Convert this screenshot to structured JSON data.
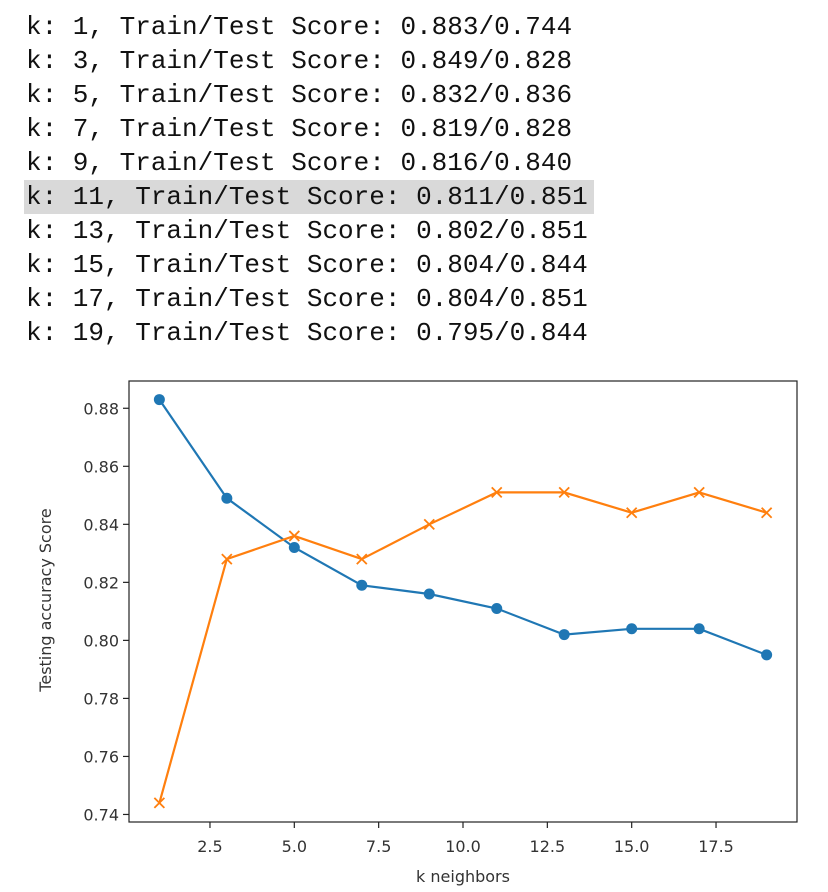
{
  "console": {
    "lines": [
      {
        "text": "k: 1, Train/Test Score: 0.883/0.744",
        "highlighted": false
      },
      {
        "text": "k: 3, Train/Test Score: 0.849/0.828",
        "highlighted": false
      },
      {
        "text": "k: 5, Train/Test Score: 0.832/0.836",
        "highlighted": false
      },
      {
        "text": "k: 7, Train/Test Score: 0.819/0.828",
        "highlighted": false
      },
      {
        "text": "k: 9, Train/Test Score: 0.816/0.840",
        "highlighted": false
      },
      {
        "text": "k: 11, Train/Test Score: 0.811/0.851",
        "highlighted": true
      },
      {
        "text": "k: 13, Train/Test Score: 0.802/0.851",
        "highlighted": false
      },
      {
        "text": "k: 15, Train/Test Score: 0.804/0.844",
        "highlighted": false
      },
      {
        "text": "k: 17, Train/Test Score: 0.804/0.851",
        "highlighted": false
      },
      {
        "text": "k: 19, Train/Test Score: 0.795/0.844",
        "highlighted": false
      }
    ]
  },
  "chart_data": {
    "type": "line",
    "title": "",
    "xlabel": "k neighbors",
    "ylabel": "Testing accuracy Score",
    "xlim": [
      0.1,
      19.9
    ],
    "ylim": [
      0.7374,
      0.8894
    ],
    "xticks": [
      2.5,
      5.0,
      7.5,
      10.0,
      12.5,
      15.0,
      17.5
    ],
    "xtick_labels": [
      "2.5",
      "5.0",
      "7.5",
      "10.0",
      "12.5",
      "15.0",
      "17.5"
    ],
    "yticks": [
      0.74,
      0.76,
      0.78,
      0.8,
      0.82,
      0.84,
      0.86,
      0.88
    ],
    "ytick_labels": [
      "0.74",
      "0.76",
      "0.78",
      "0.80",
      "0.82",
      "0.84",
      "0.86",
      "0.88"
    ],
    "grid": false,
    "x": [
      1,
      3,
      5,
      7,
      9,
      11,
      13,
      15,
      17,
      19
    ],
    "series": [
      {
        "values": [
          0.883,
          0.849,
          0.832,
          0.819,
          0.816,
          0.811,
          0.802,
          0.804,
          0.804,
          0.795
        ],
        "color": "#1f77b4",
        "marker": "circle"
      },
      {
        "values": [
          0.744,
          0.828,
          0.836,
          0.828,
          0.84,
          0.851,
          0.851,
          0.844,
          0.851,
          0.844
        ],
        "color": "#ff7f0e",
        "marker": "x"
      }
    ]
  }
}
